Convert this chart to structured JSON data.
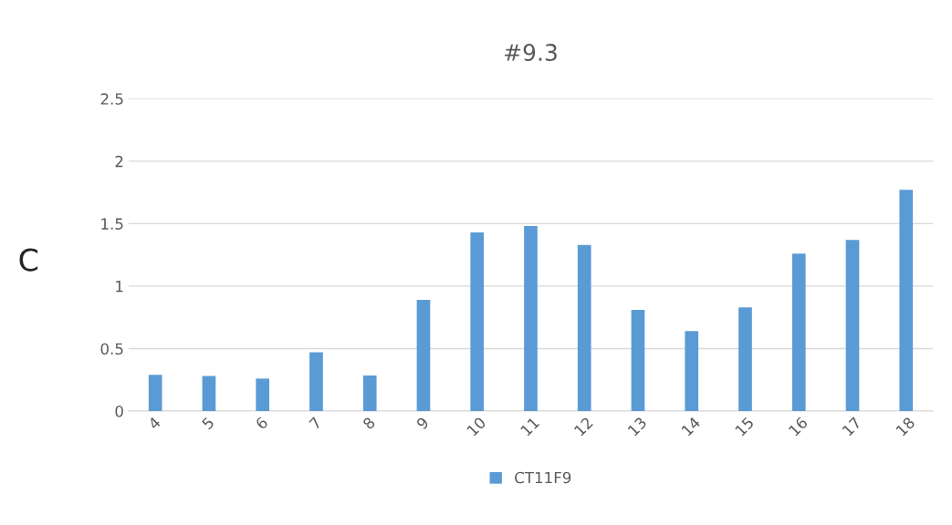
{
  "chart_data": {
    "type": "bar",
    "title": "#9.3",
    "categories": [
      "4",
      "5",
      "6",
      "7",
      "8",
      "9",
      "10",
      "11",
      "12",
      "13",
      "14",
      "15",
      "16",
      "17",
      "18"
    ],
    "series": [
      {
        "name": "CT11F9",
        "color": "#5b9bd5",
        "values": [
          0.29,
          0.28,
          0.26,
          0.47,
          0.285,
          0.89,
          1.43,
          1.48,
          1.33,
          0.81,
          0.64,
          0.83,
          1.26,
          1.37,
          1.77
        ]
      }
    ],
    "ylim": [
      0,
      2.5
    ],
    "yticks": [
      0,
      0.5,
      1,
      1.5,
      2,
      2.5
    ],
    "grid": "y",
    "legend": "bottom",
    "annotations": [
      "C"
    ]
  }
}
